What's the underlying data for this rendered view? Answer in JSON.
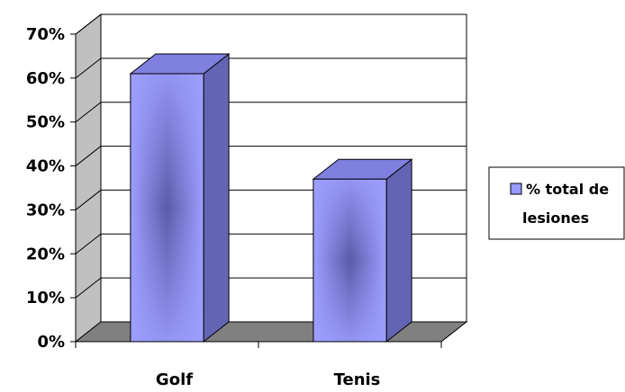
{
  "chart_data": {
    "type": "bar",
    "title": "",
    "xlabel": "",
    "ylabel": "",
    "categories": [
      "Golf",
      "Tenis"
    ],
    "series": [
      {
        "name": "% total de lesiones",
        "values": [
          0.61,
          0.37
        ]
      }
    ],
    "ylim": [
      0,
      0.7
    ],
    "yticks": [
      0,
      0.1,
      0.2,
      0.3,
      0.4,
      0.5,
      0.6,
      0.7
    ],
    "ytick_labels": [
      "0%",
      "10%",
      "20%",
      "30%",
      "40%",
      "50%",
      "60%",
      "70%"
    ],
    "grid": true,
    "legend_position": "right",
    "style": "3d",
    "colors": {
      "bar_front": "#9999ff",
      "bar_front_center": "#5a5aa8",
      "bar_top": "#8080e0",
      "bar_side": "#6464b4",
      "wall": "#c0c0c0",
      "floor": "#808080",
      "gridline": "#000000"
    }
  },
  "legend": {
    "line1": "% total de",
    "line2": "lesiones"
  }
}
